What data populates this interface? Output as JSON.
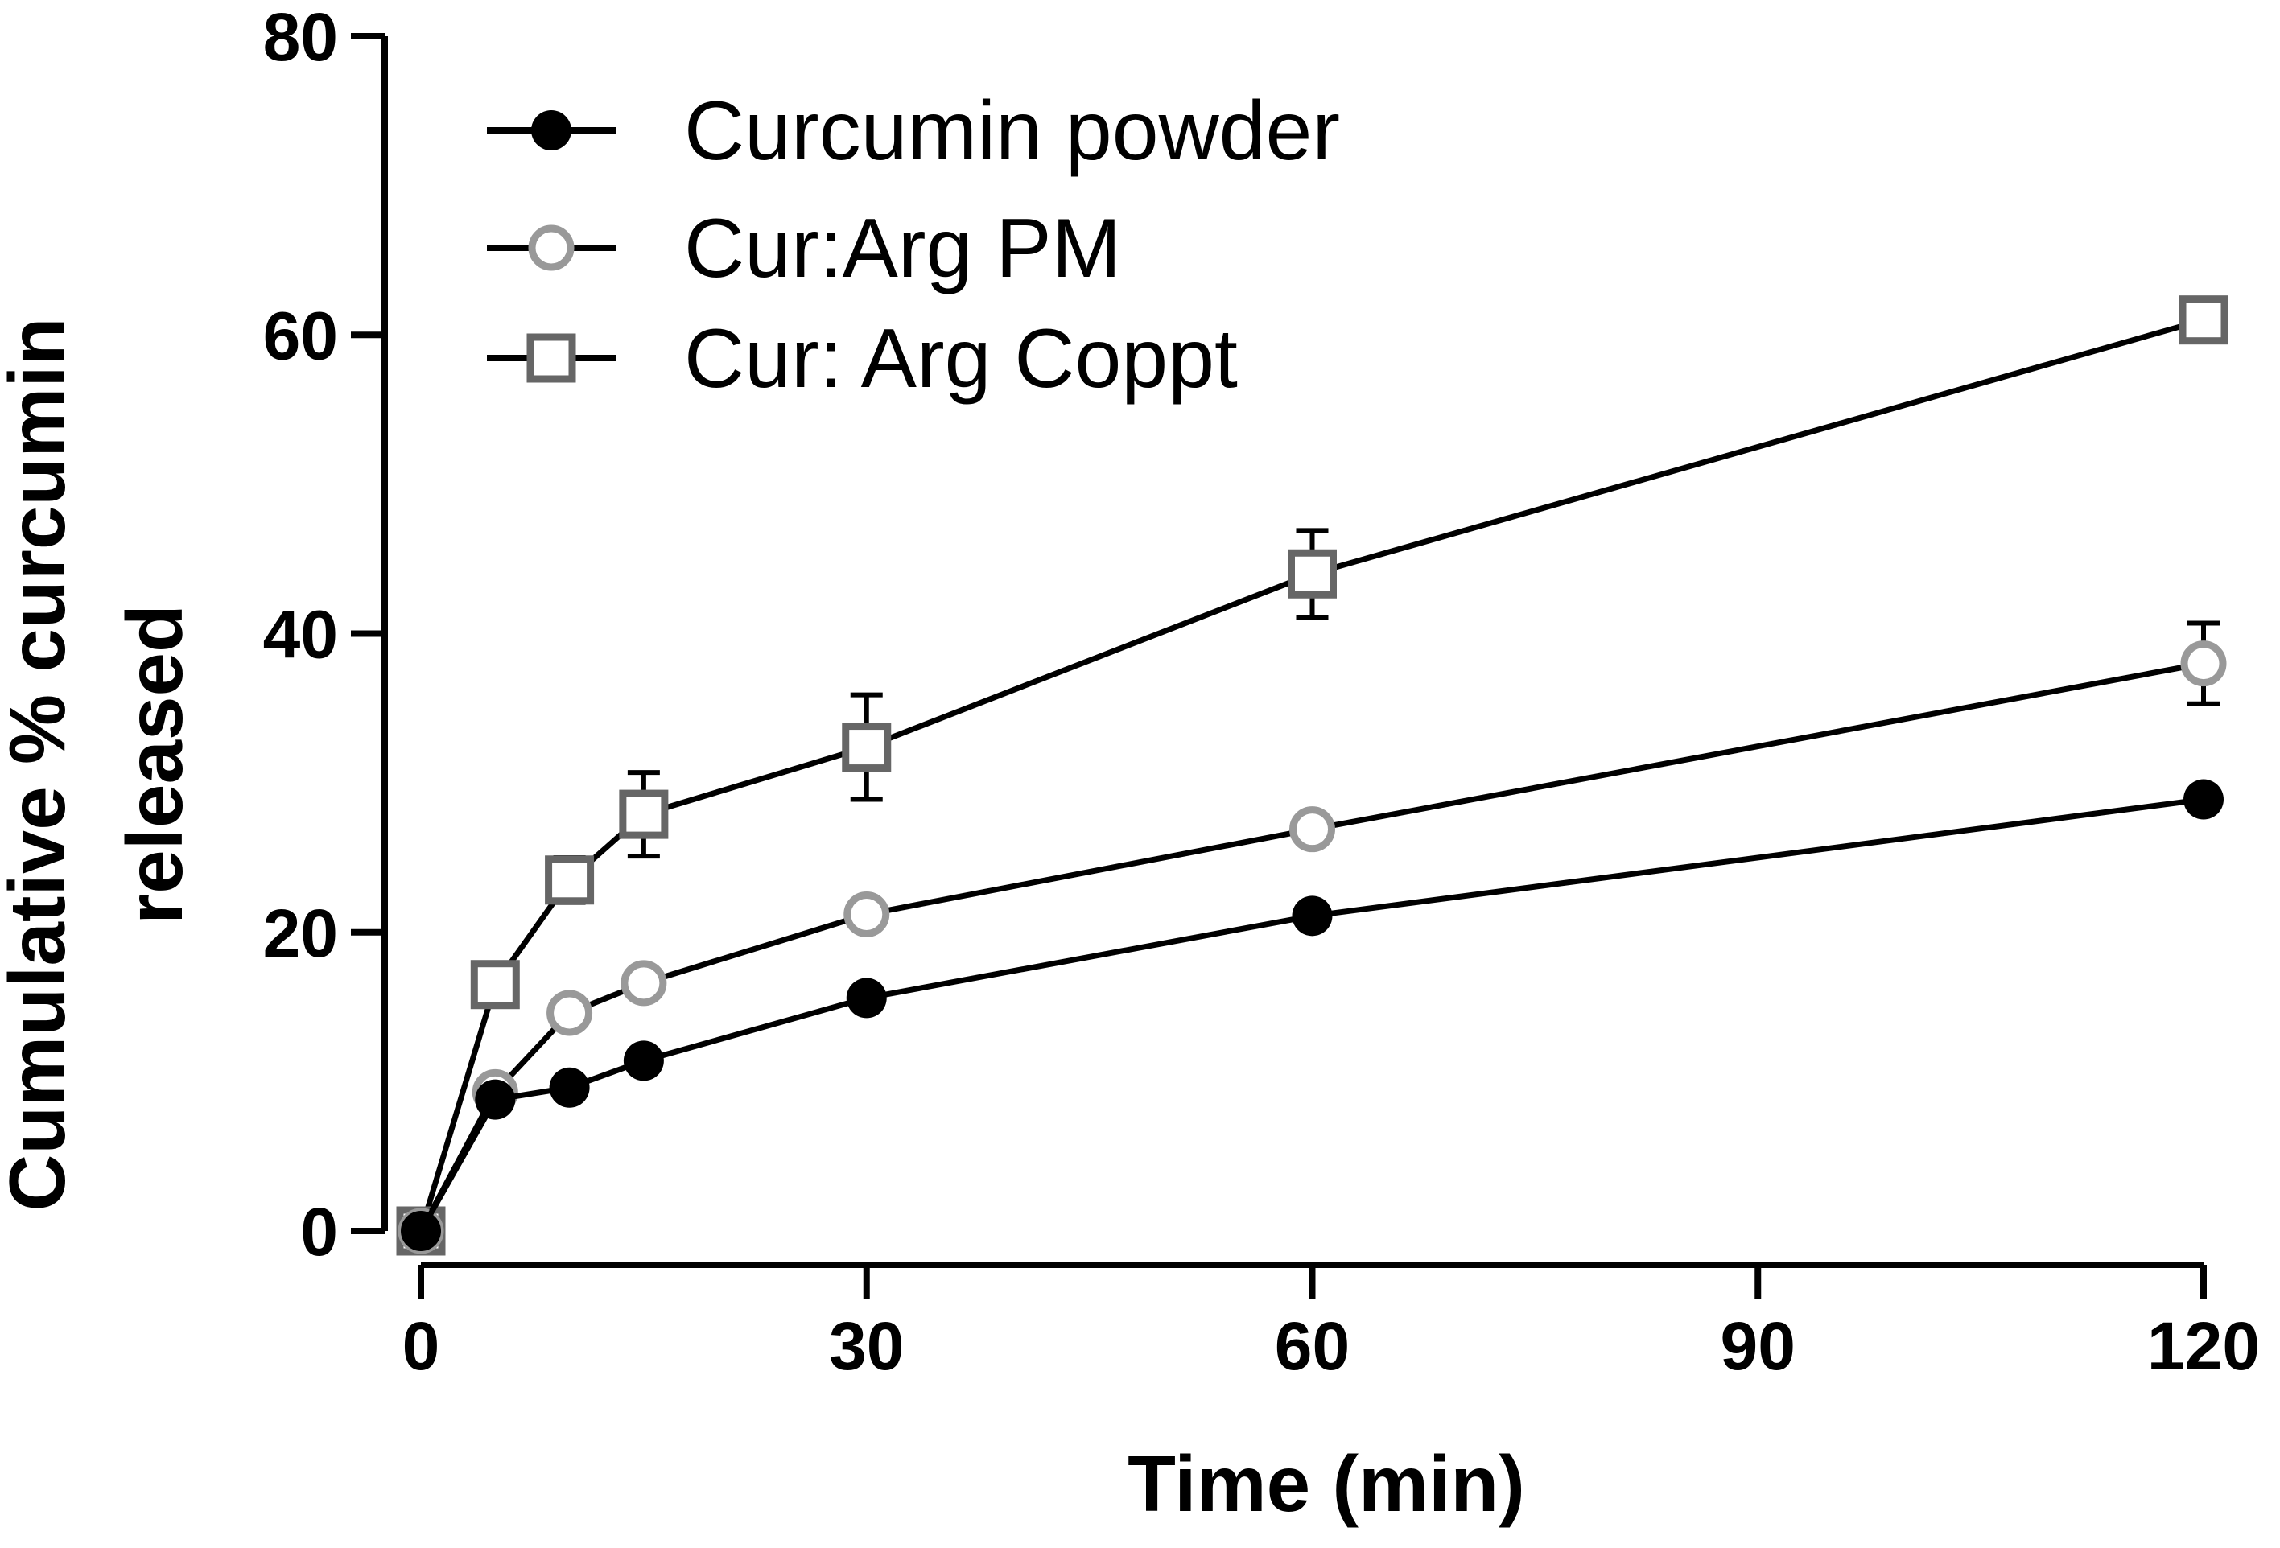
{
  "chart_data": {
    "type": "line",
    "xlabel": "Time (min)",
    "ylabel": "Cumulative % curcumin released",
    "ylabel_lines": [
      "Cumulative % curcumin",
      "released"
    ],
    "xlim": [
      0,
      120
    ],
    "ylim": [
      0,
      80
    ],
    "xticks": [
      0,
      30,
      60,
      90,
      120
    ],
    "yticks": [
      0,
      20,
      40,
      60,
      80
    ],
    "grid": false,
    "legend_position": "top-left",
    "x": [
      0,
      5,
      10,
      15,
      30,
      60,
      120
    ],
    "series": [
      {
        "name": "Curcumin powder",
        "marker": "filled-circle",
        "color": "#000000",
        "values": [
          0,
          8.8,
          9.6,
          11.4,
          15.6,
          21.1,
          28.9
        ],
        "errors": [
          0,
          0.3,
          0.3,
          0.3,
          0.4,
          0.5,
          0.6
        ]
      },
      {
        "name": "Cur:Arg PM",
        "marker": "open-circle",
        "color": "#999999",
        "values": [
          0,
          9.3,
          14.6,
          16.6,
          21.2,
          26.9,
          38.0
        ],
        "errors": [
          0,
          0.5,
          0.7,
          0.6,
          0.8,
          0.7,
          2.7
        ]
      },
      {
        "name": "Cur: Arg Coppt",
        "marker": "open-square",
        "color": "#666666",
        "values": [
          0,
          16.5,
          23.5,
          27.9,
          32.4,
          44.0,
          61.0
        ],
        "errors": [
          0,
          0.6,
          1.5,
          2.8,
          3.5,
          2.9,
          0.8
        ]
      }
    ]
  }
}
